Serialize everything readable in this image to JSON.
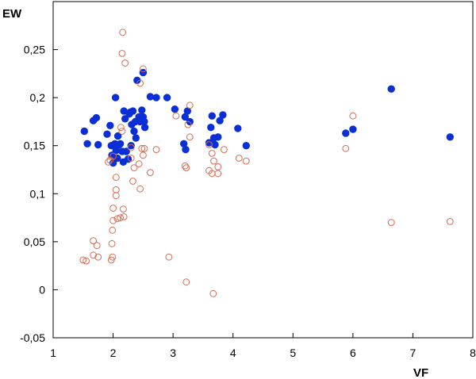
{
  "chart_data": {
    "type": "scatter",
    "xlabel": "VF",
    "ylabel": "EW",
    "xlim": [
      1,
      8
    ],
    "ylim": [
      -0.05,
      0.3
    ],
    "xticks": [
      1,
      2,
      3,
      4,
      5,
      6,
      7,
      8
    ],
    "xtick_labels": [
      "1",
      "2",
      "3",
      "4",
      "5",
      "6",
      "7",
      "8"
    ],
    "yticks": [
      -0.05,
      0,
      0.05,
      0.1,
      0.15,
      0.2,
      0.25
    ],
    "ytick_labels": [
      "-0,05",
      "0",
      "0,05",
      "0,1",
      "0,15",
      "0,2",
      "0,25"
    ],
    "grid": false,
    "series": [
      {
        "marker": "filled-circle",
        "color": "#0a2fd6",
        "points": [
          [
            1.52,
            0.165
          ],
          [
            1.57,
            0.152
          ],
          [
            1.67,
            0.176
          ],
          [
            1.72,
            0.179
          ],
          [
            1.75,
            0.151
          ],
          [
            1.9,
            0.162
          ],
          [
            1.95,
            0.171
          ],
          [
            1.97,
            0.15
          ],
          [
            1.98,
            0.14
          ],
          [
            2.0,
            0.132
          ],
          [
            2.03,
            0.152
          ],
          [
            2.04,
            0.2
          ],
          [
            2.05,
            0.145
          ],
          [
            2.07,
            0.137
          ],
          [
            2.08,
            0.16
          ],
          [
            2.1,
            0.151
          ],
          [
            2.12,
            0.152
          ],
          [
            2.15,
            0.144
          ],
          [
            2.17,
            0.133
          ],
          [
            2.18,
            0.186
          ],
          [
            2.2,
            0.178
          ],
          [
            2.22,
            0.144
          ],
          [
            2.25,
            0.136
          ],
          [
            2.27,
            0.183
          ],
          [
            2.29,
            0.185
          ],
          [
            2.3,
            0.15
          ],
          [
            2.31,
            0.172
          ],
          [
            2.33,
            0.186
          ],
          [
            2.35,
            0.165
          ],
          [
            2.37,
            0.175
          ],
          [
            2.38,
            0.158
          ],
          [
            2.4,
            0.218
          ],
          [
            2.43,
            0.18
          ],
          [
            2.45,
            0.175
          ],
          [
            2.48,
            0.187
          ],
          [
            2.5,
            0.18
          ],
          [
            2.5,
            0.226
          ],
          [
            2.52,
            0.175
          ],
          [
            2.53,
            0.169
          ],
          [
            2.62,
            0.201
          ],
          [
            2.72,
            0.2
          ],
          [
            2.9,
            0.2
          ],
          [
            3.03,
            0.188
          ],
          [
            3.18,
            0.152
          ],
          [
            3.2,
            0.18
          ],
          [
            3.21,
            0.146
          ],
          [
            3.24,
            0.186
          ],
          [
            3.28,
            0.175
          ],
          [
            3.6,
            0.153
          ],
          [
            3.63,
            0.169
          ],
          [
            3.65,
            0.181
          ],
          [
            3.68,
            0.158
          ],
          [
            3.7,
            0.151
          ],
          [
            3.75,
            0.159
          ],
          [
            3.78,
            0.176
          ],
          [
            3.83,
            0.182
          ],
          [
            4.08,
            0.168
          ],
          [
            4.22,
            0.15
          ],
          [
            5.88,
            0.163
          ],
          [
            6.0,
            0.167
          ],
          [
            6.64,
            0.209
          ],
          [
            7.62,
            0.159
          ]
        ]
      },
      {
        "marker": "open-circle",
        "color": "#d66a4e",
        "points": [
          [
            2.16,
            0.268
          ],
          [
            2.15,
            0.246
          ],
          [
            2.2,
            0.236
          ],
          [
            2.5,
            0.23
          ],
          [
            2.45,
            0.215
          ],
          [
            3.28,
            0.192
          ],
          [
            3.05,
            0.181
          ],
          [
            6.0,
            0.181
          ],
          [
            3.25,
            0.172
          ],
          [
            2.13,
            0.169
          ],
          [
            2.15,
            0.165
          ],
          [
            3.28,
            0.159
          ],
          [
            3.6,
            0.151
          ],
          [
            2.3,
            0.148
          ],
          [
            2.48,
            0.147
          ],
          [
            2.52,
            0.147
          ],
          [
            2.72,
            0.146
          ],
          [
            3.85,
            0.146
          ],
          [
            5.88,
            0.147
          ],
          [
            3.65,
            0.142
          ],
          [
            2.5,
            0.14
          ],
          [
            2.0,
            0.139
          ],
          [
            1.95,
            0.135
          ],
          [
            1.92,
            0.133
          ],
          [
            2.3,
            0.137
          ],
          [
            2.43,
            0.131
          ],
          [
            4.1,
            0.137
          ],
          [
            4.22,
            0.134
          ],
          [
            3.68,
            0.134
          ],
          [
            2.35,
            0.127
          ],
          [
            3.2,
            0.129
          ],
          [
            3.22,
            0.127
          ],
          [
            3.75,
            0.128
          ],
          [
            3.6,
            0.124
          ],
          [
            2.62,
            0.122
          ],
          [
            3.65,
            0.121
          ],
          [
            3.75,
            0.121
          ],
          [
            2.05,
            0.117
          ],
          [
            2.33,
            0.113
          ],
          [
            2.45,
            0.105
          ],
          [
            2.05,
            0.104
          ],
          [
            2.05,
            0.098
          ],
          [
            2.17,
            0.084
          ],
          [
            2.0,
            0.085
          ],
          [
            2.07,
            0.074
          ],
          [
            2.12,
            0.075
          ],
          [
            2.18,
            0.076
          ],
          [
            2.0,
            0.072
          ],
          [
            1.99,
            0.062
          ],
          [
            6.64,
            0.07
          ],
          [
            7.62,
            0.071
          ],
          [
            1.67,
            0.051
          ],
          [
            1.98,
            0.048
          ],
          [
            1.73,
            0.046
          ],
          [
            1.67,
            0.036
          ],
          [
            1.75,
            0.034
          ],
          [
            1.99,
            0.034
          ],
          [
            2.93,
            0.034
          ],
          [
            1.5,
            0.031
          ],
          [
            1.55,
            0.03
          ],
          [
            1.97,
            0.031
          ],
          [
            3.22,
            0.008
          ],
          [
            3.67,
            -0.004
          ]
        ]
      }
    ]
  }
}
